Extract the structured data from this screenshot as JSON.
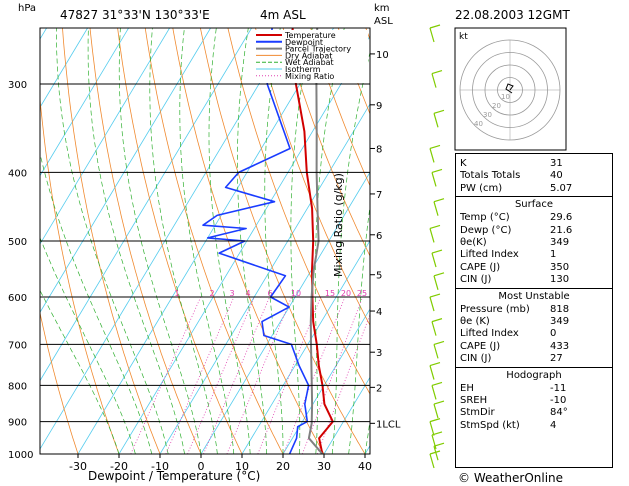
{
  "header": {
    "left_unit": "hPa",
    "station": "47827  31°33'N  130°33'E",
    "elevation": "4m  ASL",
    "right_unit_top": "km",
    "right_unit_bottom": "ASL",
    "datetime": "22.08.2003  12GMT"
  },
  "footer": {
    "copyright": "© WeatherOnline"
  },
  "chart_data": {
    "type": "line",
    "chart_kind": "Skew-T log-P sounding",
    "xlabel": "Dewpoint / Temperature (°C)",
    "ylabel": "",
    "right_axis_label": "Mixing Ratio (g/kg)",
    "x_ticks": [
      -30,
      -20,
      -10,
      0,
      10,
      20,
      30,
      40
    ],
    "pressure_ticks": [
      300,
      400,
      500,
      600,
      700,
      800,
      900,
      1000
    ],
    "height_ticks": [
      {
        "p": 272,
        "label": "10"
      },
      {
        "p": 321,
        "label": "9"
      },
      {
        "p": 370,
        "label": "8"
      },
      {
        "p": 429,
        "label": "7"
      },
      {
        "p": 490,
        "label": "6"
      },
      {
        "p": 558,
        "label": "5"
      },
      {
        "p": 628,
        "label": "4"
      },
      {
        "p": 718,
        "label": "3"
      },
      {
        "p": 805,
        "label": "2"
      },
      {
        "p": 905,
        "label": "1LCL"
      }
    ],
    "mixing_ratio_labels": [
      "1",
      "2",
      "3",
      "4",
      "6",
      "10",
      "15",
      "20",
      "25"
    ],
    "legend": [
      "Temperature",
      "Dewpoint",
      "Parcel Trajectory",
      "Dry Adiabat",
      "Wet Adiabat",
      "Isotherm",
      "Mixing Ratio"
    ],
    "legend_position": "top-right",
    "colors": {
      "temperature": "#d10000",
      "dewpoint": "#1a3cff",
      "parcel": "#808080",
      "dry_adiabat": "#f08a30",
      "wet_adiabat": "#30b030",
      "isotherm": "#55ccee",
      "mixing_ratio": "#e040b0"
    },
    "series": [
      {
        "name": "Temperature",
        "points": [
          [
            1000,
            29.6
          ],
          [
            950,
            26.5
          ],
          [
            900,
            27.4
          ],
          [
            850,
            22.8
          ],
          [
            800,
            19.6
          ],
          [
            750,
            15.8
          ],
          [
            700,
            12.2
          ],
          [
            650,
            8.0
          ],
          [
            600,
            4.2
          ],
          [
            550,
            0.2
          ],
          [
            500,
            -3.8
          ],
          [
            450,
            -8.8
          ],
          [
            400,
            -15.4
          ],
          [
            350,
            -22.0
          ],
          [
            300,
            -31.0
          ],
          [
            250,
            -40.0
          ]
        ]
      },
      {
        "name": "Dewpoint",
        "points": [
          [
            1000,
            21.6
          ],
          [
            950,
            21.0
          ],
          [
            915,
            19.6
          ],
          [
            900,
            21.2
          ],
          [
            850,
            18.0
          ],
          [
            800,
            16.2
          ],
          [
            750,
            11.0
          ],
          [
            700,
            6.0
          ],
          [
            680,
            -2.0
          ],
          [
            650,
            -4.5
          ],
          [
            620,
            0.0
          ],
          [
            600,
            -6.0
          ],
          [
            560,
            -5.5
          ],
          [
            520,
            -25.0
          ],
          [
            500,
            -20.5
          ],
          [
            495,
            -30.0
          ],
          [
            480,
            -22.0
          ],
          [
            475,
            -33.0
          ],
          [
            460,
            -31.0
          ],
          [
            440,
            -19.0
          ],
          [
            420,
            -33.0
          ],
          [
            400,
            -32.0
          ],
          [
            370,
            -23.0
          ],
          [
            300,
            -38.0
          ],
          [
            250,
            -45.0
          ]
        ]
      },
      {
        "name": "Parcel Trajectory",
        "points": [
          [
            1000,
            29.6
          ],
          [
            950,
            24.0
          ],
          [
            905,
            22.5
          ],
          [
            850,
            19.8
          ],
          [
            800,
            17.0
          ],
          [
            750,
            14.0
          ],
          [
            700,
            10.8
          ],
          [
            650,
            7.4
          ],
          [
            600,
            4.0
          ],
          [
            550,
            0.6
          ],
          [
            500,
            -2.5
          ],
          [
            450,
            -7.5
          ],
          [
            400,
            -13.0
          ],
          [
            350,
            -19.0
          ],
          [
            300,
            -26.0
          ],
          [
            250,
            -34.0
          ]
        ]
      }
    ],
    "wind_barbs_right": true,
    "hodograph": {
      "unit": "kt",
      "ring_labels": [
        "10",
        "20",
        "30",
        "40"
      ]
    },
    "indices": {
      "top": [
        {
          "label": "K",
          "value": "31"
        },
        {
          "label": "Totals Totals",
          "value": "40"
        },
        {
          "label": "PW (cm)",
          "value": "5.07"
        }
      ],
      "surface_title": "Surface",
      "surface": [
        {
          "label": "Temp (°C)",
          "value": "29.6"
        },
        {
          "label": "Dewp (°C)",
          "value": "21.6"
        },
        {
          "label": "θe(K)",
          "value": "349"
        },
        {
          "label": "Lifted Index",
          "value": "1"
        },
        {
          "label": "CAPE (J)",
          "value": "350"
        },
        {
          "label": "CIN (J)",
          "value": "130"
        }
      ],
      "unstable_title": "Most Unstable",
      "unstable": [
        {
          "label": "Pressure (mb)",
          "value": "818"
        },
        {
          "label": "θe (K)",
          "value": "349"
        },
        {
          "label": "Lifted Index",
          "value": "0"
        },
        {
          "label": "CAPE (J)",
          "value": "433"
        },
        {
          "label": "CIN (J)",
          "value": "27"
        }
      ],
      "hodo_title": "Hodograph",
      "hodo": [
        {
          "label": "EH",
          "value": "-11"
        },
        {
          "label": "SREH",
          "value": "-10"
        },
        {
          "label": "StmDir",
          "value": "84°"
        },
        {
          "label": "StmSpd (kt)",
          "value": "4"
        }
      ]
    }
  }
}
